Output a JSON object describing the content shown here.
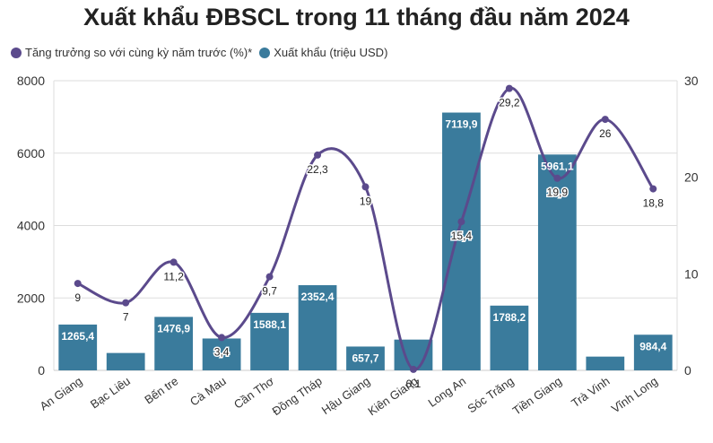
{
  "title": "Xuất khẩu ĐBSCL trong 11 tháng đầu năm 2024",
  "legend": [
    {
      "label": "Tăng trưởng so với cùng kỳ năm trước (%)*",
      "color": "#5b4a8c"
    },
    {
      "label": "Xuất khẩu (triệu USD)",
      "color": "#3a7b9c"
    }
  ],
  "chart_data": {
    "type": "bar",
    "categories": [
      "An Giang",
      "Bạc Liêu",
      "Bến tre",
      "Cà Mau",
      "Cần Thơ",
      "Đồng Tháp",
      "Hậu Giang",
      "Kiên Giang",
      "Long An",
      "Sóc Trăng",
      "Tiền Giang",
      "Trà Vinh",
      "Vĩnh Long"
    ],
    "series": [
      {
        "name": "Xuất khẩu (triệu USD)",
        "type": "bar",
        "axis": "left",
        "values": [
          1265.4,
          480,
          1476.9,
          880,
          1588.1,
          2352.4,
          657.7,
          850,
          7119.9,
          1788.2,
          5961.1,
          380,
          984.4
        ],
        "labels": [
          "1265,4",
          "",
          "1476,9",
          "",
          "1588,1",
          "2352,4",
          "657,7",
          "",
          "7119,9",
          "1788,2",
          "5961,1",
          "",
          "984,4"
        ],
        "color": "#3a7b9c"
      },
      {
        "name": "Tăng trưởng so với cùng kỳ năm trước (%)*",
        "type": "line",
        "axis": "right",
        "values": [
          9,
          7,
          11.2,
          3.4,
          9.7,
          22.3,
          19,
          0.1,
          15.4,
          29.2,
          19.9,
          26,
          18.8
        ],
        "labels": [
          "9",
          "7",
          "11,2",
          "3,4",
          "9,7",
          "22,3",
          "19",
          "0,1",
          "15,4",
          "29,2",
          "19,9",
          "26",
          "18,8"
        ],
        "color": "#5b4a8c"
      }
    ],
    "ylim_left": [
      0,
      8000
    ],
    "yticks_left": [
      "0",
      "2000",
      "4000",
      "6000",
      "8000"
    ],
    "ylim_right": [
      0,
      30
    ],
    "yticks_right": [
      "0",
      "10",
      "20",
      "30"
    ],
    "grid": true,
    "legend_position": "top-left"
  }
}
